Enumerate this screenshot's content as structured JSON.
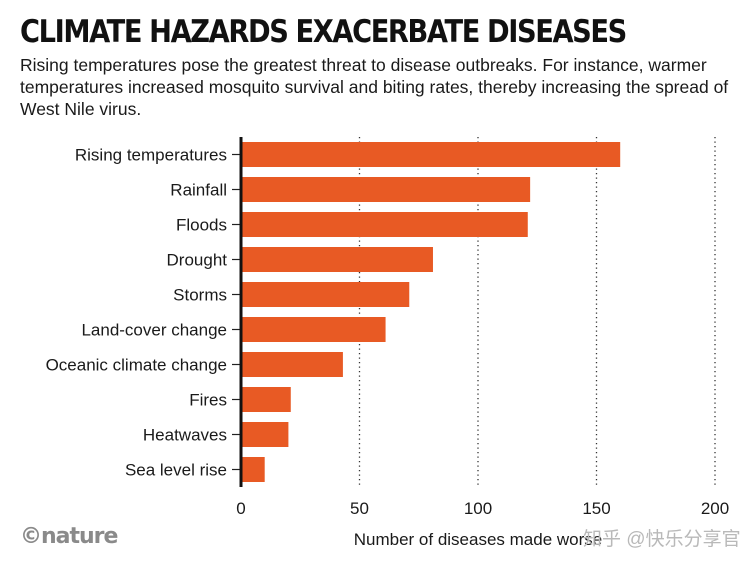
{
  "title": "CLIMATE HAZARDS EXACERBATE DISEASES",
  "subtitle": "Rising temperatures pose the greatest threat to disease outbreaks. For instance, warmer temperatures increased mosquito survival and biting rates, thereby increasing the spread of West Nile virus.",
  "brand": "©nature",
  "watermark": "知乎 @快乐分享官",
  "chart_data": {
    "type": "bar",
    "orientation": "horizontal",
    "categories": [
      "Rising temperatures",
      "Rainfall",
      "Floods",
      "Drought",
      "Storms",
      "Land-cover change",
      "Oceanic climate change",
      "Fires",
      "Heatwaves",
      "Sea level rise"
    ],
    "values": [
      160,
      122,
      121,
      81,
      71,
      61,
      43,
      21,
      20,
      10
    ],
    "xlabel": "Number of diseases made worse",
    "xlim": [
      0,
      200
    ],
    "xticks": [
      0,
      50,
      100,
      150,
      200
    ],
    "grid": "vertical dotted",
    "bar_color": "#e85a24"
  }
}
